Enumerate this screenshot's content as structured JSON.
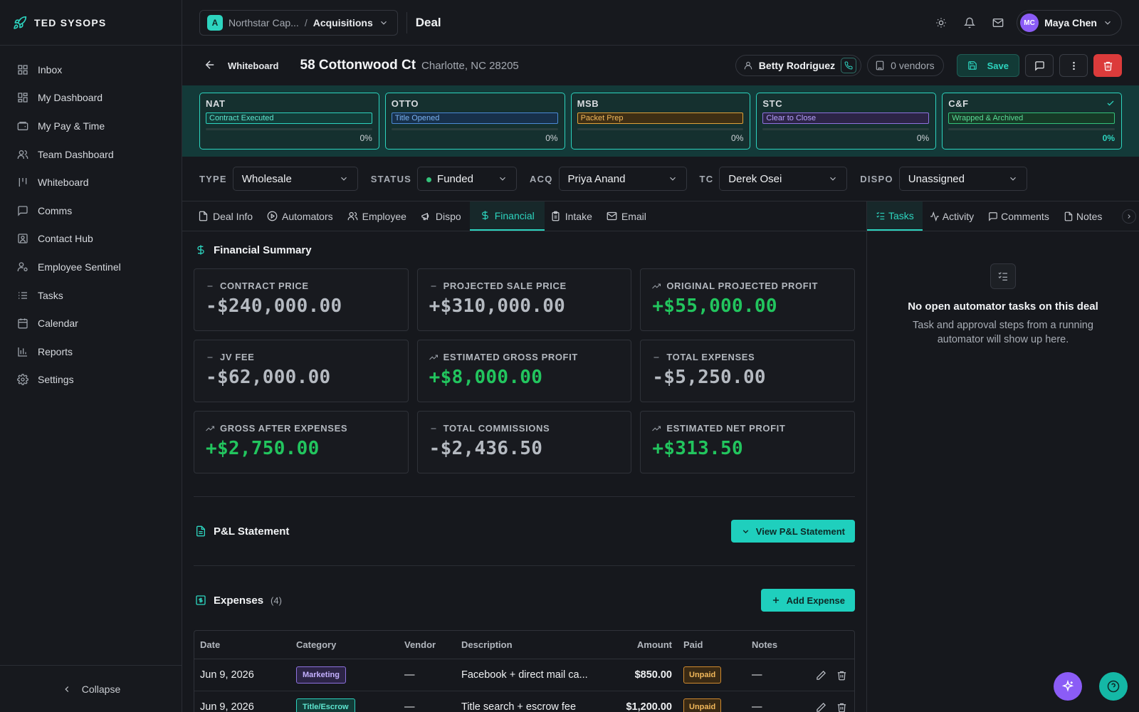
{
  "app": {
    "brand": "TED SYSOPS"
  },
  "sidebar": {
    "items": [
      {
        "label": "Inbox",
        "icon": "inbox-icon"
      },
      {
        "label": "My Dashboard",
        "icon": "dashboard-icon"
      },
      {
        "label": "My Pay & Time",
        "icon": "wallet-icon"
      },
      {
        "label": "Team Dashboard",
        "icon": "users-icon"
      },
      {
        "label": "Whiteboard",
        "icon": "columns-icon"
      },
      {
        "label": "Comms",
        "icon": "message-icon"
      },
      {
        "label": "Contact Hub",
        "icon": "contact-icon"
      },
      {
        "label": "Employee Sentinel",
        "icon": "user-cog-icon"
      },
      {
        "label": "Tasks",
        "icon": "list-check-icon"
      },
      {
        "label": "Calendar",
        "icon": "calendar-icon"
      },
      {
        "label": "Reports",
        "icon": "bar-chart-icon"
      },
      {
        "label": "Settings",
        "icon": "gear-icon"
      }
    ],
    "collapse_label": "Collapse"
  },
  "topbar": {
    "org_initial": "A",
    "org": "Northstar Cap...",
    "separator": "/",
    "workspace": "Acquisitions",
    "title": "Deal",
    "user_initials": "MC",
    "user_name": "Maya Chen"
  },
  "deal": {
    "back_label": "Whiteboard",
    "address": "58 Cottonwood Ct",
    "city": "Charlotte, NC 28205",
    "contact": "Betty Rodriguez",
    "vendors": "0 vendors",
    "save_label": "Save"
  },
  "stages": [
    {
      "name": "NAT",
      "status": "Contract Executed",
      "color": "teal",
      "progress": "0%",
      "done": false
    },
    {
      "name": "OTTO",
      "status": "Title Opened",
      "color": "blue",
      "progress": "0%",
      "done": false
    },
    {
      "name": "MSB",
      "status": "Packet Prep",
      "color": "amber",
      "progress": "0%",
      "done": false
    },
    {
      "name": "STC",
      "status": "Clear to Close",
      "color": "purple",
      "progress": "0%",
      "done": false
    },
    {
      "name": "C&F",
      "status": "Wrapped & Archived",
      "color": "green",
      "progress": "0%",
      "done": true
    }
  ],
  "meta": {
    "type_label": "TYPE",
    "type_value": "Wholesale",
    "status_label": "STATUS",
    "status_value": "Funded",
    "acq_label": "ACQ",
    "acq_value": "Priya Anand",
    "tc_label": "TC",
    "tc_value": "Derek Osei",
    "dispo_label": "DISPO",
    "dispo_value": "Unassigned"
  },
  "tabs": [
    {
      "label": "Deal Info",
      "icon": "file-icon"
    },
    {
      "label": "Automators",
      "icon": "play-circle-icon"
    },
    {
      "label": "Employee",
      "icon": "users-icon"
    },
    {
      "label": "Dispo",
      "icon": "megaphone-icon"
    },
    {
      "label": "Financial",
      "icon": "dollar-icon",
      "active": true
    },
    {
      "label": "Intake",
      "icon": "clipboard-icon"
    },
    {
      "label": "Email",
      "icon": "mail-icon"
    }
  ],
  "right_tabs": [
    {
      "label": "Tasks",
      "icon": "list-check-icon",
      "active": true
    },
    {
      "label": "Activity",
      "icon": "activity-icon"
    },
    {
      "label": "Comments",
      "icon": "message-icon"
    },
    {
      "label": "Notes",
      "icon": "file-icon"
    }
  ],
  "financial": {
    "title": "Financial Summary",
    "cards": [
      {
        "label": "CONTRACT PRICE",
        "value": "-$240,000.00",
        "trend": "flat"
      },
      {
        "label": "PROJECTED SALE PRICE",
        "value": "+$310,000.00",
        "trend": "flat"
      },
      {
        "label": "ORIGINAL PROJECTED PROFIT",
        "value": "+$55,000.00",
        "trend": "up"
      },
      {
        "label": "JV FEE",
        "value": "-$62,000.00",
        "trend": "flat"
      },
      {
        "label": "ESTIMATED GROSS PROFIT",
        "value": "+$8,000.00",
        "trend": "up"
      },
      {
        "label": "TOTAL EXPENSES",
        "value": "-$5,250.00",
        "trend": "flat"
      },
      {
        "label": "GROSS AFTER EXPENSES",
        "value": "+$2,750.00",
        "trend": "up"
      },
      {
        "label": "TOTAL COMMISSIONS",
        "value": "-$2,436.50",
        "trend": "flat"
      },
      {
        "label": "ESTIMATED NET PROFIT",
        "value": "+$313.50",
        "trend": "up"
      }
    ]
  },
  "pnl": {
    "title": "P&L Statement",
    "button": "View P&L Statement"
  },
  "expenses": {
    "title": "Expenses",
    "count": "(4)",
    "add_label": "Add Expense",
    "columns": [
      "Date",
      "Category",
      "Vendor",
      "Description",
      "Amount",
      "Paid",
      "Notes"
    ],
    "rows": [
      {
        "date": "Jun 9, 2026",
        "category": "Marketing",
        "cat_color": "purple",
        "vendor": "—",
        "description": "Facebook + direct mail ca...",
        "amount": "$850.00",
        "paid": "Unpaid",
        "notes": "—"
      },
      {
        "date": "Jun 9, 2026",
        "category": "Title/Escrow",
        "cat_color": "teal",
        "vendor": "—",
        "description": "Title search + escrow fee",
        "amount": "$1,200.00",
        "paid": "Unpaid",
        "notes": "—"
      }
    ]
  },
  "tasks_panel": {
    "empty_title": "No open automator tasks on this deal",
    "empty_text": "Task and approval steps from a running automator will show up here."
  }
}
